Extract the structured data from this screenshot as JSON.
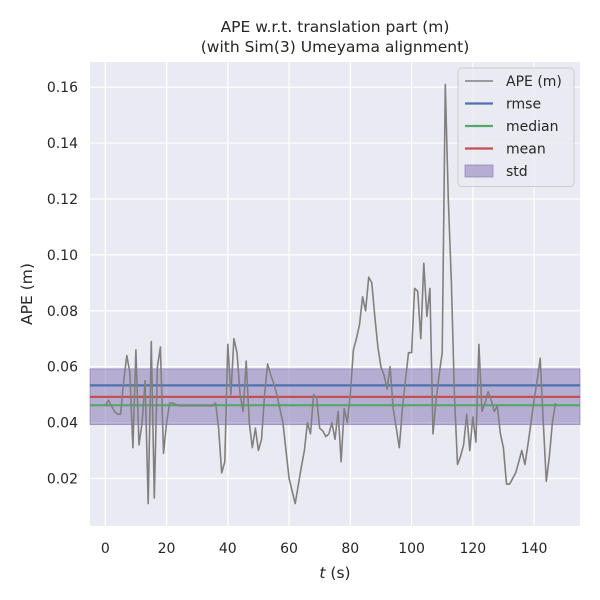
{
  "chart_data": {
    "type": "line",
    "title": "APE w.r.t. translation part (m)",
    "subtitle": "(with Sim(3) Umeyama alignment)",
    "xlabel_italic": "t",
    "xlabel_rest": " (s)",
    "ylabel": "APE (m)",
    "xlim": [
      -5,
      155
    ],
    "ylim": [
      0.003,
      0.169
    ],
    "xticks": [
      0,
      20,
      40,
      60,
      80,
      100,
      120,
      140
    ],
    "xtick_labels": [
      "0",
      "20",
      "40",
      "60",
      "80",
      "100",
      "120",
      "140"
    ],
    "yticks": [
      0.02,
      0.04,
      0.06,
      0.08,
      0.1,
      0.12,
      0.14,
      0.16
    ],
    "ytick_labels": [
      "0.02",
      "0.04",
      "0.06",
      "0.08",
      "0.10",
      "0.12",
      "0.14",
      "0.16"
    ],
    "grid": true,
    "legend_position": "top-right",
    "series": [
      {
        "name": "APE (m)",
        "color": "#808080",
        "x": [
          0,
          1,
          2,
          3,
          4,
          5,
          6,
          7,
          8,
          9,
          10,
          11,
          12,
          13,
          14,
          15,
          16,
          17,
          18,
          19,
          20,
          21,
          22,
          24,
          26,
          28,
          30,
          32,
          34,
          35,
          36,
          37,
          38,
          39,
          40,
          41,
          42,
          43,
          44,
          45,
          46,
          47,
          48,
          49,
          50,
          51,
          52,
          53,
          54,
          55,
          56,
          58,
          60,
          62,
          64,
          65,
          66,
          67,
          68,
          69,
          70,
          71,
          72,
          73,
          74,
          75,
          76,
          77,
          78,
          79,
          80,
          81,
          82,
          83,
          84,
          85,
          86,
          87,
          88,
          89,
          90,
          91,
          92,
          93,
          94,
          95,
          96,
          97,
          98,
          99,
          100,
          101,
          102,
          103,
          104,
          105,
          106,
          107,
          108,
          109,
          110,
          111,
          112,
          113,
          114,
          115,
          116,
          117,
          118,
          119,
          120,
          121,
          122,
          123,
          124,
          125,
          126,
          127,
          128,
          129,
          130,
          131,
          132,
          133,
          134,
          135,
          136,
          137,
          138,
          139,
          140,
          141,
          142,
          143,
          144,
          145,
          146,
          147
        ],
        "values": [
          0.046,
          0.048,
          0.046,
          0.044,
          0.043,
          0.043,
          0.055,
          0.064,
          0.058,
          0.031,
          0.066,
          0.032,
          0.04,
          0.055,
          0.011,
          0.069,
          0.013,
          0.06,
          0.067,
          0.029,
          0.04,
          0.047,
          0.047,
          0.046,
          0.046,
          0.046,
          0.046,
          0.046,
          0.046,
          0.046,
          0.047,
          0.038,
          0.022,
          0.026,
          0.068,
          0.05,
          0.07,
          0.065,
          0.05,
          0.044,
          0.062,
          0.04,
          0.031,
          0.038,
          0.03,
          0.034,
          0.05,
          0.061,
          0.057,
          0.054,
          0.05,
          0.04,
          0.02,
          0.011,
          0.024,
          0.03,
          0.04,
          0.036,
          0.05,
          0.049,
          0.038,
          0.037,
          0.035,
          0.036,
          0.04,
          0.034,
          0.044,
          0.026,
          0.045,
          0.04,
          0.05,
          0.066,
          0.07,
          0.075,
          0.085,
          0.08,
          0.092,
          0.09,
          0.078,
          0.067,
          0.06,
          0.057,
          0.052,
          0.06,
          0.045,
          0.038,
          0.031,
          0.045,
          0.055,
          0.065,
          0.065,
          0.088,
          0.087,
          0.07,
          0.097,
          0.078,
          0.088,
          0.036,
          0.048,
          0.057,
          0.065,
          0.161,
          0.12,
          0.09,
          0.05,
          0.025,
          0.028,
          0.032,
          0.043,
          0.03,
          0.042,
          0.033,
          0.068,
          0.044,
          0.047,
          0.051,
          0.048,
          0.044,
          0.046,
          0.036,
          0.031,
          0.018,
          0.018,
          0.02,
          0.022,
          0.026,
          0.03,
          0.025,
          0.032,
          0.04,
          0.048,
          0.055,
          0.063,
          0.04,
          0.019,
          0.028,
          0.04,
          0.047
        ]
      },
      {
        "name": "rmse",
        "color": "#4c72b0",
        "constant": 0.0533
      },
      {
        "name": "median",
        "color": "#55a868",
        "constant": 0.0462
      },
      {
        "name": "mean",
        "color": "#c44e52",
        "constant": 0.0492
      },
      {
        "name": "std",
        "color": "#8172b2",
        "band": [
          0.0393,
          0.0592
        ]
      }
    ]
  }
}
